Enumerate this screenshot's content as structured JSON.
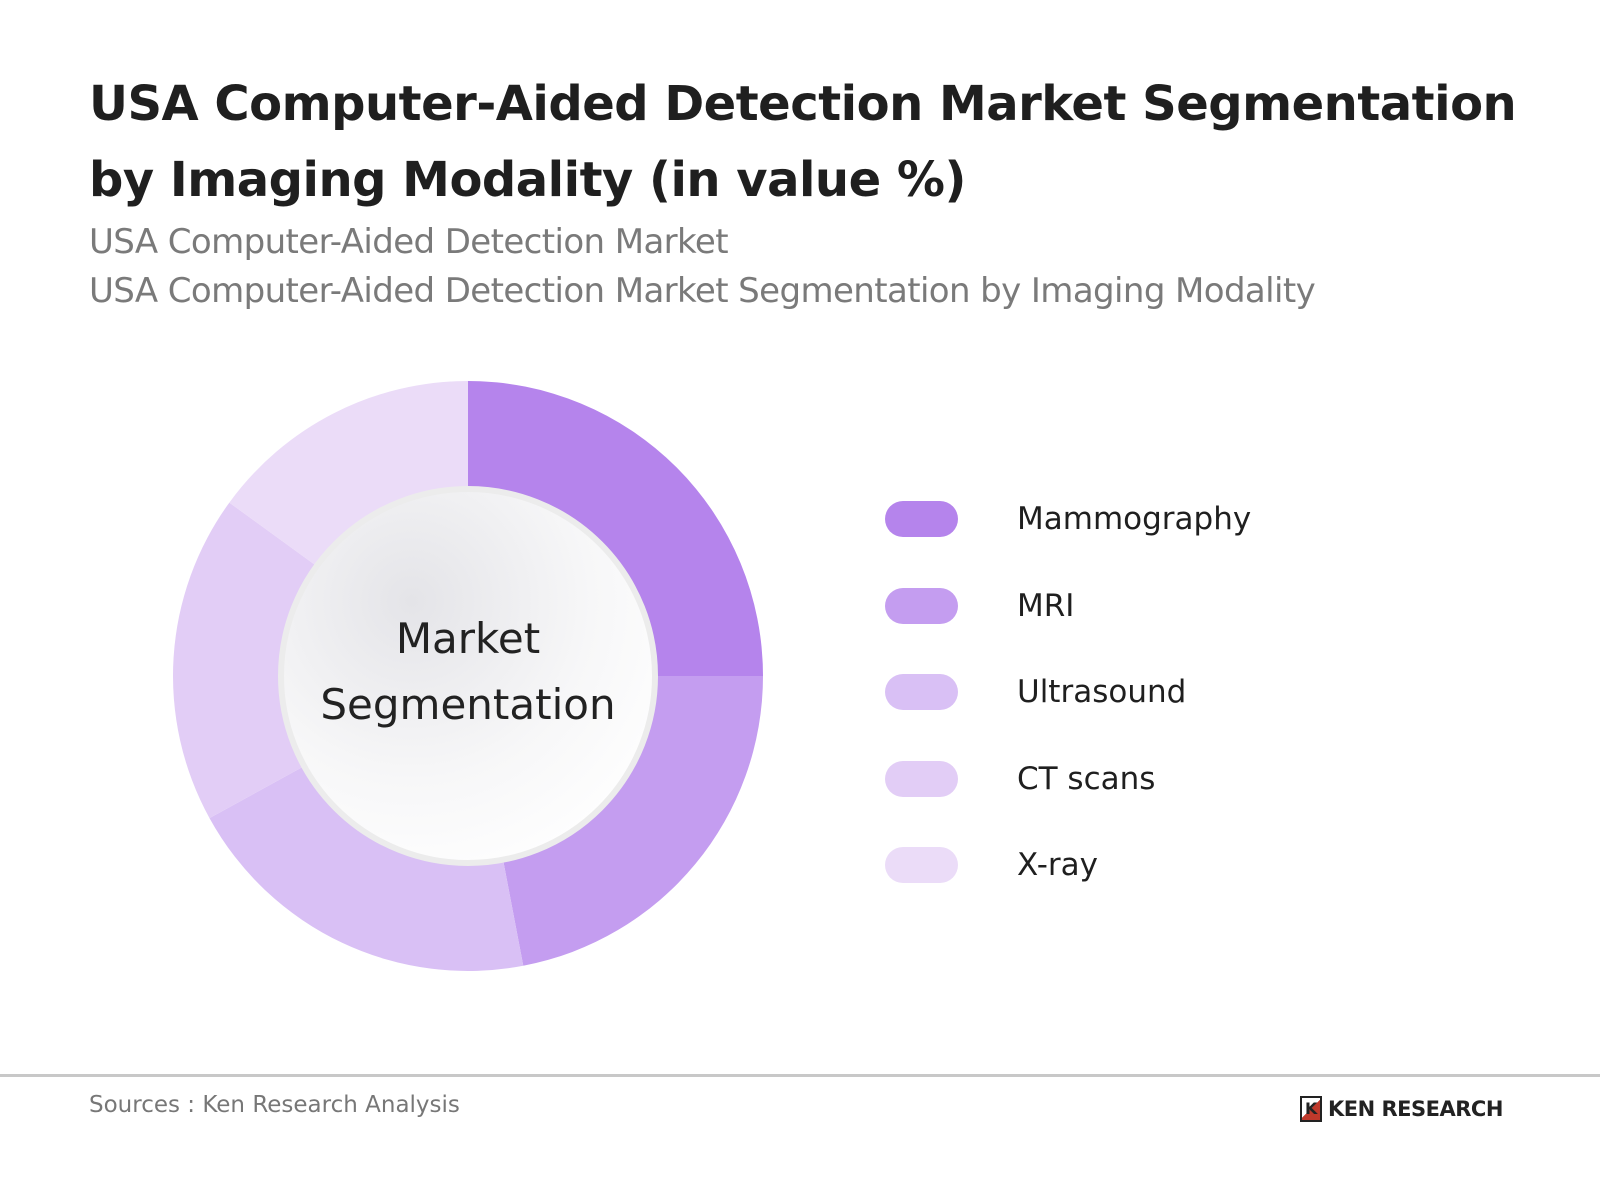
{
  "title": "USA Computer-Aided Detection Market Segmentation by Imaging Modality (in value %)",
  "subtitle_1": "USA Computer-Aided Detection Market",
  "subtitle_2": "USA Computer-Aided Detection Market Segmentation by Imaging Modality",
  "center_label_1": "Market",
  "center_label_2": "Segmentation",
  "source": "Sources : Ken Research Analysis",
  "logo_text": "KEN RESEARCH",
  "chart_data": {
    "type": "pie",
    "variant": "donut",
    "legend_position": "right",
    "categories": [
      "Mammography",
      "MRI",
      "Ultrasound",
      "CT scans",
      "X-ray"
    ],
    "values": [
      25,
      22,
      20,
      18,
      15
    ],
    "colors": [
      "#b584ec",
      "#c49df0",
      "#d9c0f5",
      "#e2cdf6",
      "#ebdcf8"
    ]
  }
}
